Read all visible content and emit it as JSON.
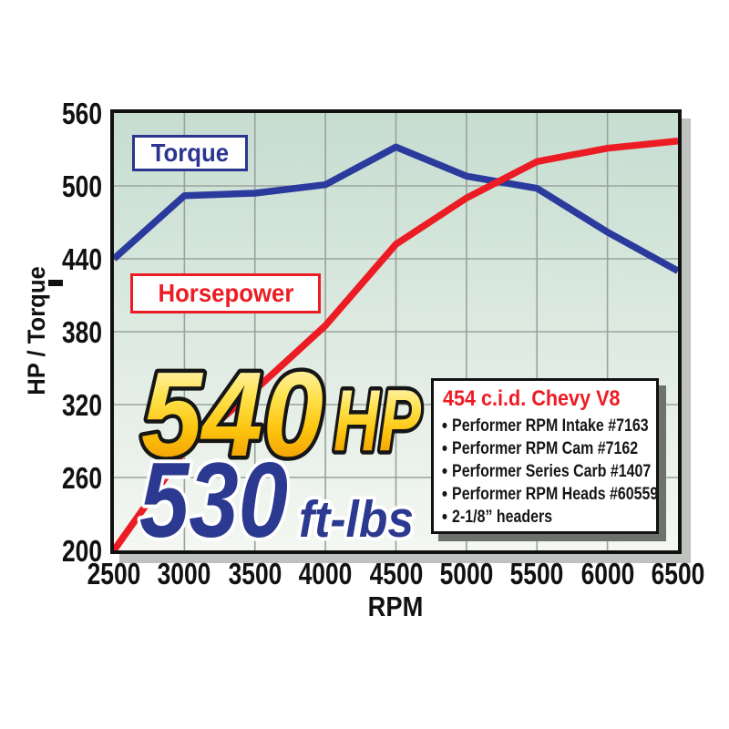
{
  "y_axis_title": "HP / Torque",
  "x_axis_title": "RPM",
  "legend": {
    "torque_label": "Torque",
    "horsepower_label": "Horsepower"
  },
  "callout": {
    "hp_value": "540",
    "hp_unit": "HP",
    "torque_value": "530",
    "torque_unit": "ft-lbs"
  },
  "info_box": {
    "title": "454 c.i.d. Chevy V8",
    "bullet": "•",
    "items": [
      "Performer RPM Intake #7163",
      "Performer RPM Cam #7162",
      "Performer Series Carb #1407",
      "Performer RPM Heads #60559",
      "2-1/8” headers"
    ]
  },
  "chart_data": {
    "type": "line",
    "title": "",
    "xlabel": "RPM",
    "ylabel": "HP / Torque",
    "x": [
      2500,
      3000,
      3500,
      4000,
      4500,
      5000,
      5500,
      6000,
      6500
    ],
    "series": [
      {
        "name": "Torque",
        "color": "#2b3a9d",
        "values": [
          440,
          492,
          494,
          501,
          532,
          508,
          498,
          462,
          430
        ]
      },
      {
        "name": "Horsepower",
        "color": "#ec1c24",
        "values": [
          200,
          282,
          332,
          385,
          452,
          490,
          520,
          531,
          537
        ]
      }
    ],
    "xlim": [
      2500,
      6500
    ],
    "ylim": [
      200,
      560
    ],
    "x_ticks": [
      2500,
      3000,
      3500,
      4000,
      4500,
      5000,
      5500,
      6000,
      6500
    ],
    "y_ticks": [
      560,
      500,
      440,
      380,
      320,
      260,
      200
    ],
    "grid": true,
    "legend_position": "labeled boxes inside plot, upper-left",
    "peaks": {
      "horsepower": "540 HP",
      "torque": "530 ft-lbs"
    },
    "colors": {
      "grid": "#9aa29e",
      "plot_bg_top": "#c6ddd0",
      "plot_bg_bottom": "#f4f7f2",
      "frame": "#111111",
      "frame_shadow": "#bfc3bf",
      "line_width": 7.5
    }
  }
}
